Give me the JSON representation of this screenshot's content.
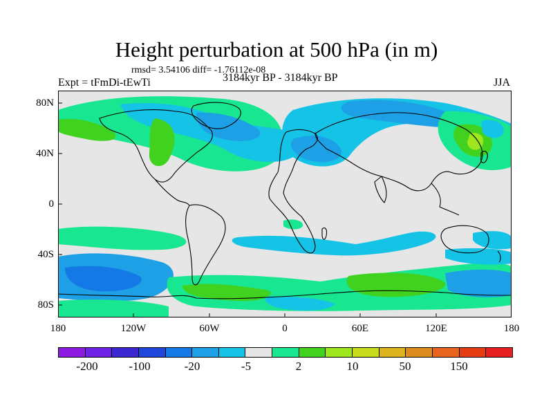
{
  "title": "Height perturbation at 500 hPa (in m)",
  "stats": "rmsd= 3.54106 diff= -1.76112e-08",
  "expt": "Expt = tFmDi-tEwTi",
  "subtitle": "3184kyr BP - 3184kyr BP",
  "season": "JJA",
  "axes": {
    "y_ticks": [
      "80N",
      "40N",
      "0",
      "40S",
      "80S"
    ],
    "x_ticks": [
      "180",
      "120W",
      "60W",
      "0",
      "60E",
      "120E",
      "180"
    ]
  },
  "colorbar": {
    "colors": [
      "#8c1ae0",
      "#6e23e6",
      "#3c28d2",
      "#1e46dc",
      "#1478e6",
      "#1ea0e6",
      "#14c3e6",
      "#e6e6e6",
      "#19e690",
      "#40d21e",
      "#9ee61e",
      "#c8dc1e",
      "#dcb41e",
      "#dc8c1e",
      "#e6641e",
      "#e63c14",
      "#e61e1e"
    ],
    "labels": [
      "-200",
      "-100",
      "-20",
      "-5",
      "2",
      "10",
      "50",
      "150"
    ]
  },
  "palette": {
    "background": "#e6e6e6",
    "light_blue": "#14c3e6",
    "mid_blue": "#1ea0e6",
    "dark_blue": "#1478e6",
    "teal": "#19e690",
    "green": "#40d21e",
    "yellow_green": "#9ee61e"
  }
}
